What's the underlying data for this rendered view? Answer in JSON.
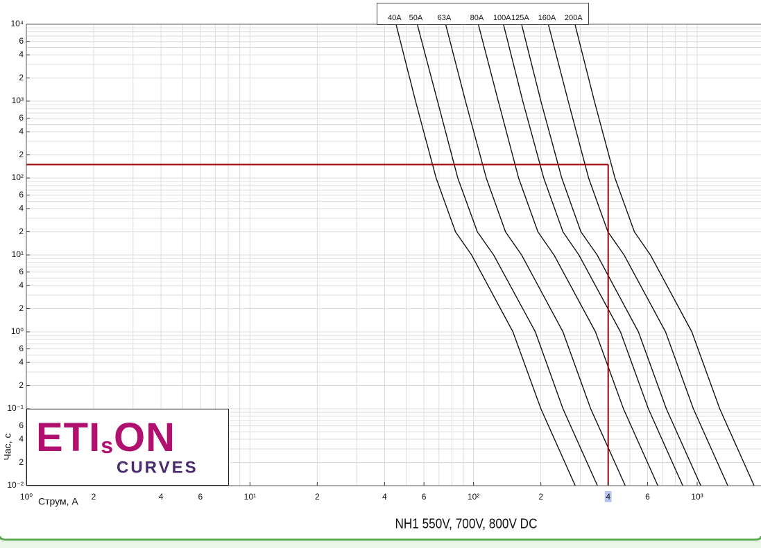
{
  "chart_data": {
    "type": "line",
    "title": "NH1 550V, 700V, 800V DC",
    "x_label": "Струм, А",
    "y_label": "Час, с",
    "x_log": true,
    "y_log": true,
    "grid": true,
    "xlim": [
      1,
      1930
    ],
    "ylim": [
      0.01,
      10000
    ],
    "xticks": [
      {
        "value": 1,
        "label": "10⁰"
      },
      2,
      4,
      6,
      {
        "value": 10,
        "label": "10¹"
      },
      {
        "value": 20,
        "label": "2"
      },
      {
        "value": 40,
        "label": "4"
      },
      {
        "value": 60,
        "label": "6"
      },
      {
        "value": 100,
        "label": "10²"
      },
      {
        "value": 200,
        "label": "2"
      },
      {
        "value": 400,
        "label": "4"
      },
      {
        "value": 600,
        "label": "6"
      },
      {
        "value": 1000,
        "label": "10³"
      }
    ],
    "xminor": [
      3,
      5,
      7,
      8,
      9,
      30,
      50,
      70,
      80,
      90,
      300,
      500,
      700,
      800,
      900
    ],
    "yticks": [
      {
        "value": 0.01,
        "label": "10⁻²"
      },
      {
        "value": 0.02,
        "label": "2"
      },
      {
        "value": 0.04,
        "label": "4"
      },
      {
        "value": 0.06,
        "label": "6"
      },
      {
        "value": 0.1,
        "label": "10⁻¹"
      },
      {
        "value": 0.2,
        "label": "2"
      },
      {
        "value": 0.4,
        "label": "4"
      },
      {
        "value": 0.6,
        "label": "6"
      },
      {
        "value": 1,
        "label": "10⁰"
      },
      2,
      4,
      6,
      {
        "value": 10,
        "label": "10¹"
      },
      {
        "value": 20,
        "label": "2"
      },
      {
        "value": 40,
        "label": "4"
      },
      {
        "value": 60,
        "label": "6"
      },
      {
        "value": 100,
        "label": "10²"
      },
      {
        "value": 200,
        "label": "2"
      },
      {
        "value": 400,
        "label": "4"
      },
      {
        "value": 600,
        "label": "6"
      },
      {
        "value": 1000,
        "label": "10³"
      },
      {
        "value": 2000,
        "label": "2"
      },
      {
        "value": 4000,
        "label": "4"
      },
      {
        "value": 6000,
        "label": "6"
      },
      {
        "value": 10000,
        "label": "10⁴"
      }
    ],
    "yminor": [
      0.03,
      0.05,
      0.07,
      0.08,
      0.09,
      0.3,
      0.5,
      0.7,
      0.8,
      0.9,
      3,
      5,
      7,
      8,
      9,
      30,
      50,
      70,
      80,
      90,
      300,
      500,
      700,
      800,
      900,
      3000,
      5000,
      7000,
      8000,
      9000
    ],
    "series": [
      {
        "name": "40A",
        "color": "#111111",
        "x": [
          45,
          55,
          68,
          83,
          98,
          150,
          200,
          285
        ],
        "values": [
          10000,
          1000,
          100,
          20,
          10,
          1,
          0.1,
          0.01
        ]
      },
      {
        "name": "50A",
        "color": "#111111",
        "x": [
          56,
          69,
          85,
          104,
          123,
          189,
          251,
          358
        ],
        "values": [
          10000,
          1000,
          100,
          20,
          10,
          1,
          0.1,
          0.01
        ]
      },
      {
        "name": "63A",
        "color": "#111111",
        "x": [
          75,
          92,
          114,
          139,
          164,
          251,
          334,
          477
        ],
        "values": [
          10000,
          1000,
          100,
          20,
          10,
          1,
          0.1,
          0.01
        ]
      },
      {
        "name": "80A",
        "color": "#111111",
        "x": [
          105,
          129,
          159,
          194,
          229,
          351,
          468,
          667
        ],
        "values": [
          10000,
          1000,
          100,
          20,
          10,
          1,
          0.1,
          0.01
        ]
      },
      {
        "name": "100A",
        "color": "#111111",
        "x": [
          136,
          166,
          206,
          251,
          296,
          454,
          605,
          862
        ],
        "values": [
          10000,
          1000,
          100,
          20,
          10,
          1,
          0.1,
          0.01
        ]
      },
      {
        "name": "125A",
        "color": "#111111",
        "x": [
          164,
          200,
          248,
          302,
          357,
          546,
          728,
          1038
        ],
        "values": [
          10000,
          1000,
          100,
          20,
          10,
          1,
          0.1,
          0.01
        ]
      },
      {
        "name": "160A",
        "color": "#111111",
        "x": [
          216,
          265,
          327,
          399,
          471,
          722,
          962,
          1371
        ],
        "values": [
          10000,
          1000,
          100,
          20,
          10,
          1,
          0.1,
          0.01
        ]
      },
      {
        "name": "200A",
        "color": "#111111",
        "x": [
          284,
          347,
          429,
          524,
          618,
          947,
          1262,
          1798
        ],
        "values": [
          10000,
          1000,
          100,
          20,
          10,
          1,
          0.1,
          0.01
        ]
      }
    ],
    "reference": {
      "x": 400,
      "y": 150,
      "color": "#a00000"
    }
  },
  "logo": {
    "brand_left": "ETI",
    "brand_small": "s",
    "brand_right": "ON",
    "subtitle": "CURVES"
  }
}
